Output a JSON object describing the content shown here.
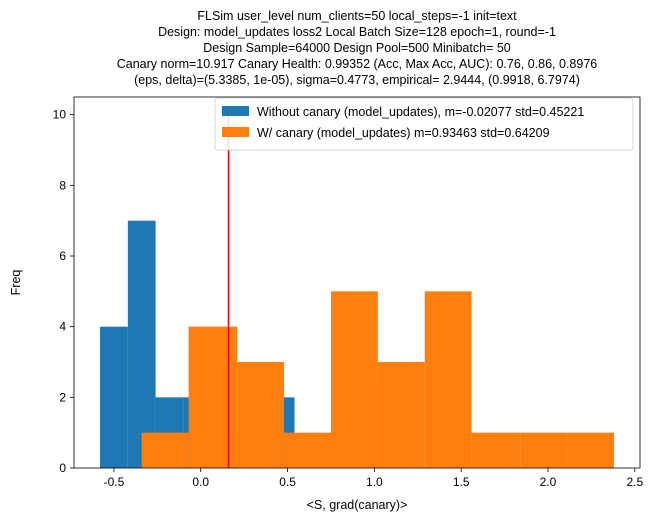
{
  "chart_data": {
    "type": "histogram",
    "title_lines": [
      "FLSim user_level num_clients=50 local_steps=-1 init=text",
      "Design: model_updates loss2 Local Batch Size=128 epoch=1, round=-1",
      "Design Sample=64000 Design Pool=500 Minibatch= 50",
      "Canary norm=10.917 Canary Health: 0.99352 (Acc, Max Acc, AUC): 0.76, 0.86, 0.8976",
      "(eps, delta)=(5.3385, 1e-05), sigma=0.4773, empirical= 2.9444, (0.9918, 6.7974)"
    ],
    "xlabel": "<S, grad(canary)>",
    "ylabel": "Freq",
    "xlim": [
      -0.73,
      2.53
    ],
    "ylim": [
      0,
      10.5
    ],
    "xticks": [
      -0.5,
      0.0,
      0.5,
      1.0,
      1.5,
      2.0,
      2.5
    ],
    "xtick_labels": [
      "-0.5",
      "0.0",
      "0.5",
      "1.0",
      "1.5",
      "2.0",
      "2.5"
    ],
    "yticks": [
      0,
      2,
      4,
      6,
      8,
      10
    ],
    "ytick_labels": [
      "0",
      "2",
      "4",
      "6",
      "8",
      "10"
    ],
    "legend_position": "top-right",
    "series": [
      {
        "name": "Without canary (model_updates), m=-0.02077 std=0.45221",
        "color": "#1f77b4",
        "bins": [
          {
            "x0": -0.58,
            "x1": -0.42,
            "count": 4
          },
          {
            "x0": -0.42,
            "x1": -0.26,
            "count": 7
          },
          {
            "x0": -0.26,
            "x1": -0.1,
            "count": 2
          },
          {
            "x0": -0.1,
            "x1": 0.06,
            "count": 2
          },
          {
            "x0": 0.06,
            "x1": 0.22,
            "count": 1
          },
          {
            "x0": 0.22,
            "x1": 0.38,
            "count": 1
          },
          {
            "x0": 0.38,
            "x1": 0.54,
            "count": 2
          }
        ]
      },
      {
        "name": "W/ canary (model_updates) m=0.93463 std=0.64209",
        "color": "#ff7f0e",
        "bins": [
          {
            "x0": -0.34,
            "x1": -0.07,
            "count": 1
          },
          {
            "x0": -0.07,
            "x1": 0.21,
            "count": 4
          },
          {
            "x0": 0.21,
            "x1": 0.48,
            "count": 3
          },
          {
            "x0": 0.48,
            "x1": 0.75,
            "count": 1
          },
          {
            "x0": 0.75,
            "x1": 1.02,
            "count": 5
          },
          {
            "x0": 1.02,
            "x1": 1.29,
            "count": 3
          },
          {
            "x0": 1.29,
            "x1": 1.56,
            "count": 5
          },
          {
            "x0": 1.56,
            "x1": 1.84,
            "count": 1
          },
          {
            "x0": 1.84,
            "x1": 2.11,
            "count": 1
          },
          {
            "x0": 2.11,
            "x1": 2.38,
            "count": 1
          }
        ]
      }
    ],
    "threshold": {
      "x": 0.16,
      "color": "#ff0000"
    }
  }
}
